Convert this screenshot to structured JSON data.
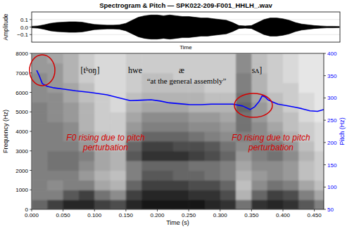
{
  "chart_data": [
    {
      "type": "waveform",
      "title": "Spectrogram & Pitch — SPK022-209-F001_HHLH_.wav",
      "xlabel": "Time",
      "ylabel": "Amplitude",
      "x": [
        0,
        0.01,
        0.02,
        0.03,
        0.04,
        0.05,
        0.06,
        0.07,
        0.08,
        0.09,
        0.1,
        0.11,
        0.12,
        0.13,
        0.14,
        0.15,
        0.16,
        0.17,
        0.18,
        0.19,
        0.2,
        0.21,
        0.22,
        0.23,
        0.24,
        0.25,
        0.26,
        0.27,
        0.28,
        0.29,
        0.3,
        0.31,
        0.32,
        0.33,
        0.34,
        0.35,
        0.36,
        0.37,
        0.38,
        0.39,
        0.4,
        0.41,
        0.42,
        0.43,
        0.44,
        0.45,
        0.46,
        0.47,
        0.48,
        0.49
      ],
      "values": [
        0.01,
        0.015,
        0.03,
        0.05,
        0.06,
        0.065,
        0.07,
        0.07,
        0.065,
        0.05,
        0.035,
        0.03,
        0.025,
        0.025,
        0.03,
        0.05,
        0.09,
        0.13,
        0.15,
        0.16,
        0.16,
        0.15,
        0.16,
        0.15,
        0.14,
        0.14,
        0.13,
        0.12,
        0.12,
        0.11,
        0.1,
        0.09,
        0.06,
        0.02,
        0.015,
        0.02,
        0.06,
        0.1,
        0.12,
        0.12,
        0.11,
        0.09,
        0.06,
        0.04,
        0.03,
        0.02,
        0.015,
        0.01,
        0.01,
        0.008
      ],
      "color": "#000000",
      "xlim": [
        0,
        0.491
      ],
      "ylim": [
        -0.2,
        0.2
      ],
      "yticks": [
        {
          "value": -0.1,
          "label": "−0.1"
        },
        {
          "value": 0,
          "label": "0.0"
        },
        0.1
      ],
      "grid": true,
      "tick_labels": "y"
    },
    {
      "type": "spectrogram",
      "xlabel": "Time (s)",
      "ylabel": "Frequency (Hz)",
      "y2label": "Pitch (Hz)",
      "xlim": [
        0,
        0.465
      ],
      "xticks": [
        {
          "value": 0,
          "label": "0.000"
        },
        {
          "value": 0.05,
          "label": "0.050"
        },
        {
          "value": 0.1,
          "label": "0.100"
        },
        {
          "value": 0.15,
          "label": "0.150"
        },
        {
          "value": 0.2,
          "label": "0.200"
        },
        {
          "value": 0.25,
          "label": "0.250"
        },
        {
          "value": 0.3,
          "label": "0.300"
        },
        {
          "value": 0.35,
          "label": "0.350"
        },
        {
          "value": 0.4,
          "label": "0.400"
        },
        {
          "value": 0.45,
          "label": "0.450"
        }
      ],
      "ylim": [
        0,
        8000
      ],
      "yticks": [
        0,
        1000,
        2000,
        3000,
        4000,
        5000,
        6000,
        7000,
        8000
      ],
      "y2lim": [
        50,
        400
      ],
      "y2ticks": [
        50,
        100,
        150,
        200,
        250,
        300,
        350,
        400
      ],
      "grid": false,
      "spectrogram": {
        "time_edges": [
          0,
          0.025,
          0.05,
          0.075,
          0.1,
          0.125,
          0.15,
          0.175,
          0.2,
          0.225,
          0.25,
          0.275,
          0.3,
          0.325,
          0.35,
          0.375,
          0.4,
          0.425,
          0.45,
          0.475
        ],
        "frequency_edges": [
          0,
          500,
          1000,
          1500,
          2000,
          2500,
          3000,
          3500,
          4000,
          4500,
          5000,
          5500,
          6000,
          6500,
          7000,
          7500,
          8000
        ],
        "cells": [
          [
            0.6,
            0.5,
            0.5,
            0.5,
            0.5,
            0.5,
            0.5,
            0.5,
            0.5,
            0.5,
            0.5,
            0.45,
            0.45,
            0.45,
            0.4,
            0.4
          ],
          [
            0.75,
            0.5,
            0.45,
            0.5,
            0.55,
            0.55,
            0.5,
            0.5,
            0.5,
            0.45,
            0.45,
            0.45,
            0.4,
            0.4,
            0.4,
            0.35
          ],
          [
            0.85,
            0.65,
            0.5,
            0.5,
            0.55,
            0.55,
            0.5,
            0.45,
            0.45,
            0.4,
            0.4,
            0.35,
            0.35,
            0.3,
            0.3,
            0.3
          ],
          [
            0.85,
            0.75,
            0.5,
            0.4,
            0.45,
            0.5,
            0.4,
            0.35,
            0.3,
            0.3,
            0.3,
            0.25,
            0.25,
            0.2,
            0.2,
            0.2
          ],
          [
            0.75,
            0.55,
            0.35,
            0.3,
            0.35,
            0.35,
            0.3,
            0.25,
            0.2,
            0.2,
            0.2,
            0.2,
            0.15,
            0.15,
            0.15,
            0.15
          ],
          [
            0.7,
            0.45,
            0.3,
            0.25,
            0.3,
            0.3,
            0.25,
            0.2,
            0.2,
            0.2,
            0.15,
            0.15,
            0.15,
            0.15,
            0.15,
            0.15
          ],
          [
            0.85,
            0.75,
            0.6,
            0.5,
            0.5,
            0.65,
            0.6,
            0.45,
            0.4,
            0.35,
            0.3,
            0.25,
            0.2,
            0.2,
            0.2,
            0.2
          ],
          [
            0.9,
            0.85,
            0.75,
            0.65,
            0.6,
            0.8,
            0.75,
            0.6,
            0.5,
            0.45,
            0.35,
            0.3,
            0.25,
            0.25,
            0.2,
            0.2
          ],
          [
            0.9,
            0.85,
            0.75,
            0.65,
            0.6,
            0.8,
            0.75,
            0.6,
            0.5,
            0.45,
            0.35,
            0.3,
            0.25,
            0.25,
            0.2,
            0.2
          ],
          [
            0.9,
            0.85,
            0.75,
            0.6,
            0.6,
            0.8,
            0.7,
            0.6,
            0.5,
            0.45,
            0.35,
            0.3,
            0.25,
            0.2,
            0.2,
            0.2
          ],
          [
            0.9,
            0.8,
            0.7,
            0.6,
            0.55,
            0.75,
            0.7,
            0.55,
            0.45,
            0.4,
            0.3,
            0.3,
            0.25,
            0.2,
            0.2,
            0.2
          ],
          [
            0.85,
            0.8,
            0.7,
            0.55,
            0.55,
            0.7,
            0.65,
            0.5,
            0.45,
            0.4,
            0.3,
            0.25,
            0.2,
            0.2,
            0.2,
            0.2
          ],
          [
            0.8,
            0.7,
            0.6,
            0.5,
            0.5,
            0.6,
            0.55,
            0.45,
            0.4,
            0.35,
            0.3,
            0.25,
            0.2,
            0.2,
            0.2,
            0.2
          ],
          [
            0.55,
            0.3,
            0.25,
            0.3,
            0.35,
            0.4,
            0.45,
            0.5,
            0.55,
            0.55,
            0.6,
            0.55,
            0.5,
            0.5,
            0.45,
            0.45
          ],
          [
            0.8,
            0.6,
            0.45,
            0.4,
            0.45,
            0.5,
            0.5,
            0.45,
            0.45,
            0.4,
            0.4,
            0.35,
            0.3,
            0.3,
            0.25,
            0.25
          ],
          [
            0.85,
            0.75,
            0.55,
            0.45,
            0.45,
            0.55,
            0.5,
            0.4,
            0.35,
            0.3,
            0.3,
            0.25,
            0.2,
            0.2,
            0.2,
            0.2
          ],
          [
            0.8,
            0.7,
            0.5,
            0.4,
            0.4,
            0.45,
            0.4,
            0.3,
            0.25,
            0.25,
            0.2,
            0.2,
            0.2,
            0.15,
            0.15,
            0.15
          ],
          [
            0.65,
            0.5,
            0.35,
            0.25,
            0.25,
            0.3,
            0.25,
            0.2,
            0.2,
            0.15,
            0.15,
            0.15,
            0.1,
            0.1,
            0.1,
            0.1
          ],
          [
            0.5,
            0.35,
            0.25,
            0.2,
            0.2,
            0.2,
            0.15,
            0.15,
            0.15,
            0.1,
            0.1,
            0.1,
            0.1,
            0.1,
            0.1,
            0.1
          ]
        ]
      },
      "x": [
        0.008,
        0.012,
        0.017,
        0.025,
        0.034,
        0.05,
        0.07,
        0.095,
        0.12,
        0.14,
        0.157,
        0.174,
        0.19,
        0.205,
        0.219,
        0.235,
        0.252,
        0.27,
        0.286,
        0.305,
        0.32,
        0.336,
        0.348,
        0.355,
        0.362,
        0.367,
        0.372,
        0.376,
        0.385,
        0.392,
        0.405,
        0.42,
        0.43,
        0.443,
        0.455,
        0.465
      ],
      "series": [
        {
          "values": [
            362,
            350,
            332,
            326,
            323,
            320,
            316,
            312,
            307,
            300,
            294,
            295,
            296,
            293,
            289,
            287,
            285,
            285,
            286,
            286,
            286,
            282,
            274,
            280,
            292,
            305,
            302,
            296,
            290,
            286,
            283,
            279,
            276,
            271,
            270,
            274
          ],
          "color": "#0000ff",
          "axis": "y2",
          "line_style": "solid"
        }
      ],
      "annotations": [
        "[tʰoŋ]",
        "hwe",
        "æ",
        "sʌ]",
        "“at the general assembly”",
        "F0 rising due to pitch perturbation",
        "F0 rising due to pitch perturbation"
      ]
    }
  ]
}
